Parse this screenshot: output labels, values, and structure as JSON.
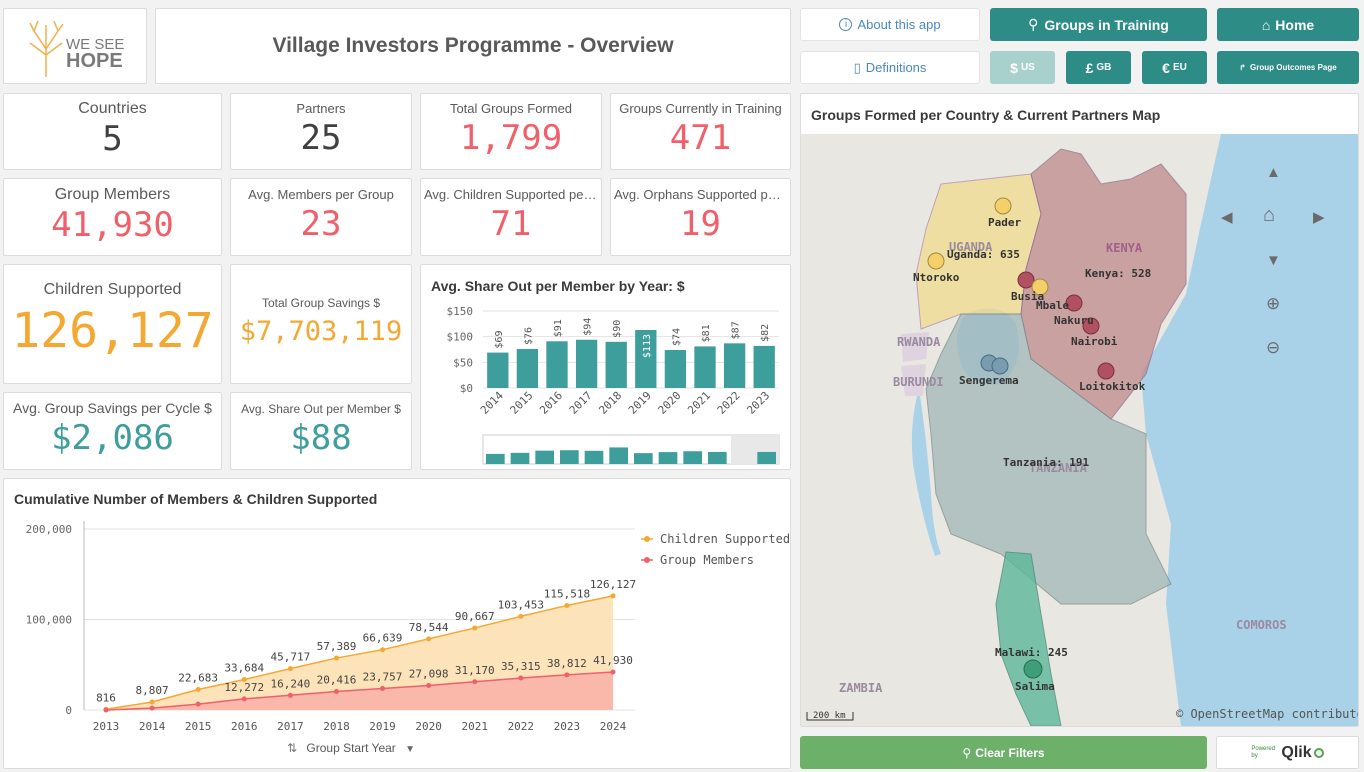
{
  "header": {
    "logo_line1": "WE SEE",
    "logo_line2": "HOPE",
    "title": "Village Investors Programme - Overview"
  },
  "toolbar": {
    "about_label": "About this app",
    "definitions_label": "Definitions",
    "groups_training_label": "Groups in Training",
    "home_label": "Home",
    "usd_label": "$",
    "usd_sub": "US",
    "gbp_label": "£",
    "gbp_sub": "GB",
    "eur_label": "€",
    "eur_sub": "EU",
    "group_outcomes_label": "Group Outcomes Page",
    "clear_filters_label": "Clear Filters",
    "powered_by": "Powered by",
    "qlik": "Qlik"
  },
  "kpis": {
    "countries": {
      "label": "Countries",
      "value": "5"
    },
    "partners": {
      "label": "Partners",
      "value": "25"
    },
    "total_groups": {
      "label": "Total Groups Formed",
      "value": "1,799"
    },
    "groups_training": {
      "label": "Groups Currently in Training",
      "value": "471"
    },
    "group_members": {
      "label": "Group Members",
      "value": "41,930"
    },
    "avg_members": {
      "label": "Avg. Members per Group",
      "value": "23"
    },
    "avg_children": {
      "label": "Avg. Children Supported per G...",
      "value": "71"
    },
    "avg_orphans": {
      "label": "Avg. Orphans Supported per ...",
      "value": "19"
    },
    "children_supported": {
      "label": "Children Supported",
      "value": "126,127"
    },
    "total_savings": {
      "label": "Total Group Savings $",
      "value": "$7,703,119"
    },
    "avg_savings_cycle": {
      "label": "Avg. Group Savings per Cycle $",
      "value": "$2,086"
    },
    "avg_shareout": {
      "label": "Avg. Share Out per Member $",
      "value": "$88"
    }
  },
  "colors": {
    "pink": "#f0606a",
    "orange": "#f5a831",
    "teal": "#3e9e9b",
    "button_teal": "#2d8c86",
    "green": "#6db06a"
  },
  "share_chart": {
    "title": "Avg. Share Out per Member by Year: $"
  },
  "cumulative_chart": {
    "title": "Cumulative Number of Members & Children Supported",
    "dimension_label": "Group Start Year"
  },
  "map": {
    "title": "Groups Formed per Country & Current Partners Map",
    "scale_label": "200 km",
    "attribution": "© OpenStreetMap contributors",
    "country_labels": [
      "UGANDA",
      "KENYA",
      "RWANDA",
      "BURUNDI",
      "TANZANIA",
      "COMOROS",
      "ZAMBIA"
    ],
    "count_labels": [
      {
        "text": "Uganda: 635"
      },
      {
        "text": "Kenya: 528"
      },
      {
        "text": "Tanzania: 191"
      },
      {
        "text": "Malawi: 245"
      }
    ],
    "places": [
      "Pader",
      "Ntoroko",
      "Busia",
      "Mbale",
      "Nakuru",
      "Nairobi",
      "Sengerema",
      "Loitokitok",
      "Salima"
    ]
  },
  "chart_data": [
    {
      "type": "bar",
      "title": "Avg. Share Out per Member by Year: $",
      "categories": [
        "2014",
        "2015",
        "2016",
        "2017",
        "2018",
        "2019",
        "2020",
        "2021",
        "2022",
        "2023"
      ],
      "values": [
        69,
        76,
        91,
        94,
        90,
        113,
        74,
        81,
        87,
        82
      ],
      "data_labels": [
        "$69",
        "$76",
        "$91",
        "$94",
        "$90",
        "$113",
        "$74",
        "$81",
        "$87",
        "$82"
      ],
      "y_ticks": [
        "$0",
        "$50",
        "$100",
        "$150"
      ],
      "ylim": [
        0,
        150
      ],
      "grid": true
    },
    {
      "type": "area",
      "title": "Cumulative Number of Members & Children Supported",
      "x": [
        "2013",
        "2014",
        "2015",
        "2016",
        "2017",
        "2018",
        "2019",
        "2020",
        "2021",
        "2022",
        "2023",
        "2024"
      ],
      "series": [
        {
          "name": "Children Supported",
          "color": "#f5a831",
          "values": [
            816,
            8807,
            22683,
            33684,
            45717,
            57389,
            66639,
            78544,
            90667,
            103453,
            115518,
            126127
          ],
          "labels": [
            "816",
            "8,807",
            "22,683",
            "33,684",
            "45,717",
            "57,389",
            "66,639",
            "78,544",
            "90,667",
            "103,453",
            "115,518",
            "126,127"
          ]
        },
        {
          "name": "Group Members",
          "color": "#f0606a",
          "values": [
            0,
            2100,
            6500,
            12272,
            16240,
            20416,
            23757,
            27098,
            31170,
            35315,
            38812,
            41930
          ],
          "labels": [
            "",
            "",
            "",
            "12,272",
            "16,240",
            "20,416",
            "23,757",
            "27,098",
            "31,170",
            "35,315",
            "38,812",
            "41,930"
          ]
        }
      ],
      "y_ticks": [
        "0",
        "100,000",
        "200,000"
      ],
      "ylim": [
        0,
        200000
      ],
      "legend": "top-right",
      "grid": true
    }
  ]
}
